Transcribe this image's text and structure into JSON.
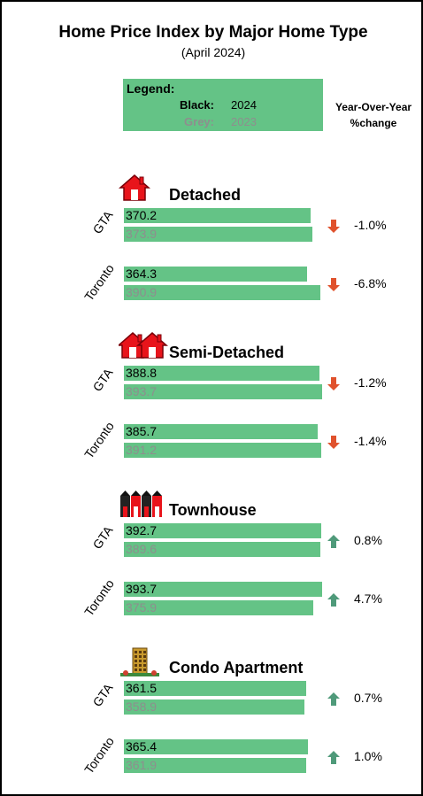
{
  "title": "Home Price Index by Major Home Type",
  "subtitle": "(April 2024)",
  "legend": {
    "title": "Legend:",
    "black_key": "Black:",
    "black_year": "2024",
    "grey_key": "Grey:",
    "grey_year": "2023"
  },
  "yoy_header": "Year-Over-Year %change",
  "colors": {
    "bar": "#64c386",
    "arrow_down": "#e0522d",
    "arrow_up": "#4f9a7a",
    "grey_text": "#8e8e8e"
  },
  "sections": [
    {
      "name": "Detached",
      "icon": "house-icon",
      "rows": [
        {
          "region": "GTA",
          "v2024": "370.2",
          "v2023": "373.9",
          "change": "-1.0%",
          "direction": "down"
        },
        {
          "region": "Toronto",
          "v2024": "364.3",
          "v2023": "390.9",
          "change": "-6.8%",
          "direction": "down"
        }
      ]
    },
    {
      "name": "Semi-Detached",
      "icon": "semi-detached-icon",
      "rows": [
        {
          "region": "GTA",
          "v2024": "388.8",
          "v2023": "393.7",
          "change": "-1.2%",
          "direction": "down"
        },
        {
          "region": "Toronto",
          "v2024": "385.7",
          "v2023": "391.2",
          "change": "-1.4%",
          "direction": "down"
        }
      ]
    },
    {
      "name": "Townhouse",
      "icon": "townhouse-icon",
      "rows": [
        {
          "region": "GTA",
          "v2024": "392.7",
          "v2023": "389.6",
          "change": "0.8%",
          "direction": "up"
        },
        {
          "region": "Toronto",
          "v2024": "393.7",
          "v2023": "375.9",
          "change": "4.7%",
          "direction": "up"
        }
      ]
    },
    {
      "name": "Condo Apartment",
      "icon": "condo-building-icon",
      "rows": [
        {
          "region": "GTA",
          "v2024": "361.5",
          "v2023": "358.9",
          "change": "0.7%",
          "direction": "up"
        },
        {
          "region": "Toronto",
          "v2024": "365.4",
          "v2023": "361.9",
          "change": "1.0%",
          "direction": "up"
        }
      ]
    }
  ],
  "chart_data": {
    "type": "bar",
    "title": "Home Price Index by Major Home Type",
    "subtitle": "(April 2024)",
    "orientation": "horizontal",
    "categories": [
      "Detached GTA",
      "Detached Toronto",
      "Semi-Detached GTA",
      "Semi-Detached Toronto",
      "Townhouse GTA",
      "Townhouse Toronto",
      "Condo Apartment GTA",
      "Condo Apartment Toronto"
    ],
    "series": [
      {
        "name": "2024",
        "values": [
          370.2,
          364.3,
          388.8,
          385.7,
          392.7,
          393.7,
          361.5,
          365.4
        ]
      },
      {
        "name": "2023",
        "values": [
          373.9,
          390.9,
          393.7,
          391.2,
          389.6,
          375.9,
          358.9,
          361.9
        ]
      }
    ],
    "yoy_change_pct": [
      -1.0,
      -6.8,
      -1.2,
      -1.4,
      0.8,
      4.7,
      0.7,
      1.0
    ],
    "grid": false,
    "legend_position": "top-center"
  }
}
